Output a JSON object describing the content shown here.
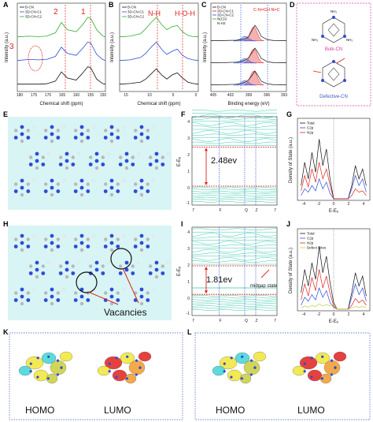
{
  "colors": {
    "black": "#111111",
    "blue": "#2a4bd8",
    "green": "#2fae2f",
    "red": "#e0201c",
    "teal": "#33c7a8",
    "olive": "#b9cf3a",
    "cyan_bg": "#d8f4f4",
    "mol_blue": "#2f4bd6",
    "mol_gray": "#b8b8b8",
    "dotted_border": "#3a56c8",
    "pink_border": "#d33ca0"
  },
  "panels": {
    "A": {
      "letter": "A",
      "ylabel": "Intensity (a.u.)",
      "xlabel": "Chemical shift (ppm)",
      "xticks": [
        "180",
        "175",
        "170",
        "165",
        "160",
        "155",
        "150"
      ],
      "legend": [
        "B-CN",
        "3D-CN-C1",
        "3D-CN-C2"
      ],
      "annotations": [
        "3",
        "2",
        "1"
      ]
    },
    "B": {
      "letter": "B",
      "ylabel": "Intensity (a.u.)",
      "xlabel": "Chemical shift (ppm)",
      "xticks": [
        "15",
        "10",
        "5",
        "0"
      ],
      "legend": [
        "B-CN",
        "3D-CN-C1",
        "3D-CN-C2"
      ],
      "annotations": [
        "N-H",
        "H-O-H"
      ]
    },
    "C": {
      "letter": "C",
      "ylabel": "Intensity (a.u.)",
      "xlabel": "Binding energy (eV)",
      "xticks": [
        "405",
        "402",
        "399",
        "396",
        "393"
      ],
      "legend": [
        "B-CN",
        "3D-CN-C1",
        "3D-CN-C2",
        "N(C)3",
        "N-H2"
      ],
      "annotations": [
        "C-N=C̶H N=C"
      ]
    },
    "D": {
      "letter": "D",
      "label_bulk": "Bulk-CN",
      "label_defect": "Defective-CN",
      "atom_label": "NH₂"
    },
    "E": {
      "letter": "E"
    },
    "F": {
      "letter": "F",
      "ylabel": "E-Eₑ",
      "xticks": [
        "Γ",
        "F",
        "Q",
        "Z",
        "Γ"
      ],
      "yticks": [
        "4",
        "3",
        "2",
        "1",
        "0",
        "-1"
      ],
      "gap_label": "2.48ev"
    },
    "G": {
      "letter": "G",
      "ylabel": "Density of State (a.u.)",
      "xlabel": "E-Eₑ",
      "xticks": [
        "-4",
        "-2",
        "0",
        "2",
        "4"
      ],
      "legend": [
        "Total",
        "C2p",
        "N2p"
      ]
    },
    "H": {
      "letter": "H",
      "vacancy_label": "Vacancies"
    },
    "I": {
      "letter": "I",
      "ylabel": "E-Eₑ",
      "xticks": [
        "Γ",
        "F",
        "Q",
        "Z",
        "Γ"
      ],
      "yticks": [
        "4",
        "3",
        "2",
        "1",
        "0",
        "-1"
      ],
      "gap_label": "1.81ev",
      "midgap_label": "midgap state"
    },
    "J": {
      "letter": "J",
      "ylabel": "Density of State (a.u.)",
      "xlabel": "E-Eₑ",
      "xticks": [
        "-4",
        "-2",
        "0",
        "2",
        "4"
      ],
      "legend": [
        "Total",
        "C2p",
        "N2p",
        "Defect Sites"
      ]
    },
    "K": {
      "letter": "K",
      "homo": "HOMO",
      "lumo": "LUMO"
    },
    "L": {
      "letter": "L",
      "homo": "HOMO",
      "lumo": "LUMO"
    }
  },
  "chart_data": [
    {
      "type": "line",
      "panel": "A",
      "title": "",
      "xlabel": "Chemical shift (ppm)",
      "ylabel": "Intensity (a.u.)",
      "xlim": [
        180,
        150
      ],
      "x": [
        180,
        176,
        173,
        170,
        167,
        165,
        163,
        160,
        158,
        156,
        155,
        153,
        151,
        150
      ],
      "series": [
        {
          "name": "B-CN",
          "values": [
            0.05,
            0.05,
            0.05,
            0.07,
            0.2,
            0.65,
            0.35,
            0.25,
            0.55,
            0.9,
            0.85,
            0.3,
            0.08,
            0.05
          ]
        },
        {
          "name": "3D-CN-C1",
          "values": [
            0.05,
            0.1,
            0.08,
            0.1,
            0.25,
            0.7,
            0.4,
            0.3,
            0.6,
            0.95,
            0.9,
            0.35,
            0.1,
            0.05
          ]
        },
        {
          "name": "3D-CN-C2",
          "values": [
            0.05,
            0.08,
            0.06,
            0.08,
            0.25,
            0.75,
            0.4,
            0.3,
            0.6,
            1.0,
            0.95,
            0.4,
            0.1,
            0.05
          ]
        }
      ]
    },
    {
      "type": "line",
      "panel": "B",
      "title": "",
      "xlabel": "Chemical shift (ppm)",
      "ylabel": "Intensity (a.u.)",
      "xlim": [
        15,
        0
      ],
      "x": [
        15,
        13,
        11,
        10,
        9,
        8,
        7,
        6,
        5,
        4,
        3,
        2,
        1,
        0
      ],
      "series": [
        {
          "name": "B-CN",
          "values": [
            0.05,
            0.08,
            0.15,
            0.3,
            0.55,
            0.8,
            0.5,
            0.3,
            0.5,
            0.6,
            0.35,
            0.15,
            0.08,
            0.05
          ]
        },
        {
          "name": "3D-CN-C1",
          "values": [
            0.05,
            0.08,
            0.2,
            0.4,
            0.7,
            0.95,
            0.6,
            0.35,
            0.5,
            0.6,
            0.3,
            0.15,
            0.08,
            0.05
          ]
        },
        {
          "name": "3D-CN-C2",
          "values": [
            0.05,
            0.08,
            0.2,
            0.45,
            0.75,
            1.0,
            0.65,
            0.4,
            0.55,
            0.6,
            0.3,
            0.12,
            0.06,
            0.05
          ]
        }
      ]
    },
    {
      "type": "line",
      "panel": "C",
      "title": "",
      "xlabel": "Binding energy (eV)",
      "ylabel": "Intensity (a.u.)",
      "xlim": [
        405,
        393
      ],
      "x": [
        405,
        403,
        401,
        400,
        399.5,
        399,
        398.5,
        398,
        397.5,
        397,
        396,
        395,
        393
      ],
      "series": [
        {
          "name": "B-CN",
          "values": [
            0.02,
            0.03,
            0.05,
            0.1,
            0.15,
            0.3,
            0.65,
            1.0,
            0.7,
            0.3,
            0.08,
            0.03,
            0.02
          ]
        },
        {
          "name": "3D-CN-C1",
          "values": [
            0.02,
            0.03,
            0.06,
            0.12,
            0.2,
            0.35,
            0.65,
            0.95,
            0.65,
            0.3,
            0.08,
            0.03,
            0.02
          ]
        },
        {
          "name": "3D-CN-C2",
          "values": [
            0.02,
            0.03,
            0.06,
            0.12,
            0.2,
            0.35,
            0.6,
            0.9,
            0.6,
            0.25,
            0.08,
            0.03,
            0.02
          ]
        }
      ]
    },
    {
      "type": "line",
      "panel": "G",
      "title": "",
      "xlabel": "E-Eₑ",
      "ylabel": "Density of State (a.u.)",
      "xlim": [
        -5,
        5
      ],
      "x": [
        -4.5,
        -4,
        -3.5,
        -3,
        -2.5,
        -2,
        -1.5,
        -1,
        -0.5,
        0,
        0.5,
        1,
        1.5,
        2,
        2.5,
        3,
        3.5,
        4,
        4.5
      ],
      "series": [
        {
          "name": "Total",
          "values": [
            0.2,
            0.55,
            0.3,
            0.7,
            0.4,
            0.9,
            0.5,
            0.75,
            0.3,
            0,
            0,
            0,
            0,
            0,
            0.2,
            0.5,
            0.3,
            0.45,
            0.2
          ]
        },
        {
          "name": "C2p",
          "values": [
            0.05,
            0.15,
            0.1,
            0.2,
            0.12,
            0.3,
            0.15,
            0.25,
            0.08,
            0,
            0,
            0,
            0,
            0,
            0.15,
            0.35,
            0.2,
            0.3,
            0.1
          ]
        },
        {
          "name": "N2p",
          "values": [
            0.12,
            0.35,
            0.18,
            0.45,
            0.25,
            0.55,
            0.3,
            0.45,
            0.2,
            0,
            0,
            0,
            0,
            0,
            0.05,
            0.15,
            0.1,
            0.12,
            0.05
          ]
        }
      ]
    },
    {
      "type": "line",
      "panel": "J",
      "title": "",
      "xlabel": "E-Eₑ",
      "ylabel": "Density of State (a.u.)",
      "xlim": [
        -5,
        5
      ],
      "x": [
        -4.5,
        -4,
        -3.5,
        -3,
        -2.5,
        -2,
        -1.5,
        -1,
        -0.5,
        0,
        0.5,
        1,
        1.5,
        2,
        2.5,
        3,
        3.5,
        4,
        4.5
      ],
      "series": [
        {
          "name": "Total",
          "values": [
            0.25,
            0.6,
            0.35,
            0.7,
            0.45,
            0.95,
            0.55,
            0.8,
            0.4,
            0.1,
            0,
            0,
            0,
            0,
            0.25,
            0.55,
            0.35,
            0.5,
            0.2
          ]
        },
        {
          "name": "C2p",
          "values": [
            0.06,
            0.18,
            0.12,
            0.22,
            0.14,
            0.32,
            0.18,
            0.28,
            0.1,
            0.03,
            0,
            0,
            0,
            0,
            0.18,
            0.38,
            0.22,
            0.32,
            0.12
          ]
        },
        {
          "name": "N2p",
          "values": [
            0.14,
            0.38,
            0.2,
            0.48,
            0.28,
            0.6,
            0.32,
            0.5,
            0.24,
            0.05,
            0,
            0,
            0,
            0,
            0.06,
            0.16,
            0.1,
            0.14,
            0.06
          ]
        },
        {
          "name": "Defect Sites",
          "values": [
            0.02,
            0.05,
            0.03,
            0.06,
            0.04,
            0.08,
            0.05,
            0.07,
            0.05,
            0.08,
            0,
            0,
            0,
            0,
            0.02,
            0.04,
            0.03,
            0.04,
            0.02
          ]
        }
      ]
    }
  ]
}
